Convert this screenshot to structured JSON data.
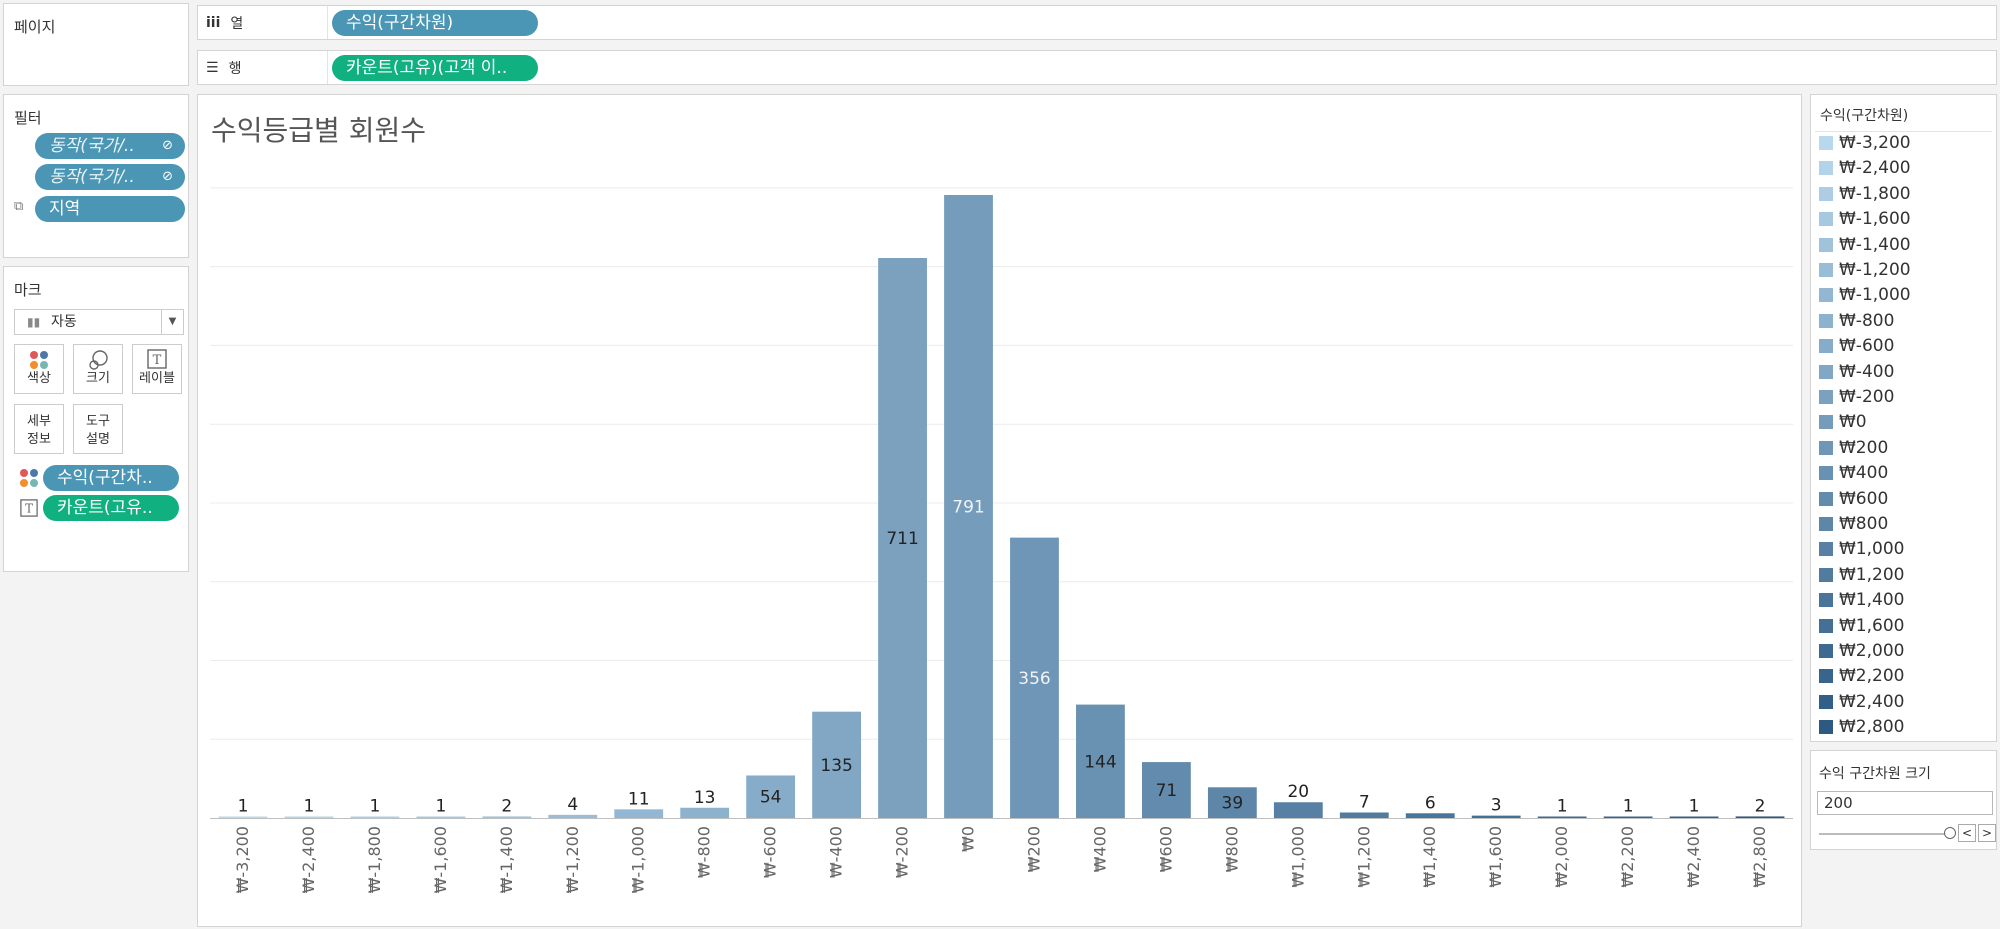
{
  "pages_panel": {
    "title": "페이지"
  },
  "columns_shelf": {
    "icon": "iii",
    "label": "열",
    "pill": "수익(구간차원)"
  },
  "rows_shelf": {
    "icon": "☰",
    "label": "행",
    "pill": "카운트(고유)(고객 이.."
  },
  "filters_panel": {
    "title": "필터",
    "items": [
      {
        "label": "동작(국가/..",
        "icon": "link-icon"
      },
      {
        "label": "동작(국가/..",
        "icon": "link-icon"
      },
      {
        "label": "지역",
        "icon": "set-icon"
      }
    ]
  },
  "marks_panel": {
    "title": "마크",
    "mark_type": "자동",
    "buttons": [
      {
        "label": "색상",
        "icon": "color-dots-icon"
      },
      {
        "label": "크기",
        "icon": "size-circles-icon"
      },
      {
        "label": "레이블",
        "icon": "text-label-icon"
      },
      {
        "label_1": "세부",
        "label_2": "정보",
        "icon": "detail-icon"
      },
      {
        "label_1": "도구",
        "label_2": "설명",
        "icon": "tooltip-icon"
      }
    ],
    "fields": [
      {
        "label": "수익(구간차..",
        "icon": "color-dots-icon"
      },
      {
        "label": "카운트(고유..",
        "icon": "text-label-icon"
      }
    ]
  },
  "legend_panel": {
    "title": "수익(구간차원)",
    "items": [
      "₩-3,200",
      "₩-2,400",
      "₩-1,800",
      "₩-1,600",
      "₩-1,400",
      "₩-1,200",
      "₩-1,000",
      "₩-800",
      "₩-600",
      "₩-400",
      "₩-200",
      "₩0",
      "₩200",
      "₩400",
      "₩600",
      "₩800",
      "₩1,000",
      "₩1,200",
      "₩1,400",
      "₩1,600",
      "₩2,000",
      "₩2,200",
      "₩2,400",
      "₩2,800"
    ]
  },
  "parameter_panel": {
    "title": "수익 구간차원 크기",
    "value": "200",
    "prev_label": "<",
    "next_label": ">"
  },
  "chart_data": {
    "type": "bar",
    "title": "수익등급별 회원수",
    "xlabel": "",
    "ylabel": "",
    "categories": [
      "₩-3,200",
      "₩-2,400",
      "₩-1,800",
      "₩-1,600",
      "₩-1,400",
      "₩-1,200",
      "₩-1,000",
      "₩-800",
      "₩-600",
      "₩-400",
      "₩-200",
      "₩0",
      "₩200",
      "₩400",
      "₩600",
      "₩800",
      "₩1,000",
      "₩1,200",
      "₩1,400",
      "₩1,600",
      "₩2,000",
      "₩2,200",
      "₩2,400",
      "₩2,800"
    ],
    "values": [
      1,
      1,
      1,
      1,
      2,
      4,
      11,
      13,
      54,
      135,
      711,
      791,
      356,
      144,
      71,
      39,
      20,
      7,
      6,
      3,
      1,
      1,
      1,
      2
    ],
    "ylim": [
      0,
      800
    ],
    "grid": true,
    "color_light": "#b8d8ee",
    "color_dark": "#2c5a83"
  }
}
